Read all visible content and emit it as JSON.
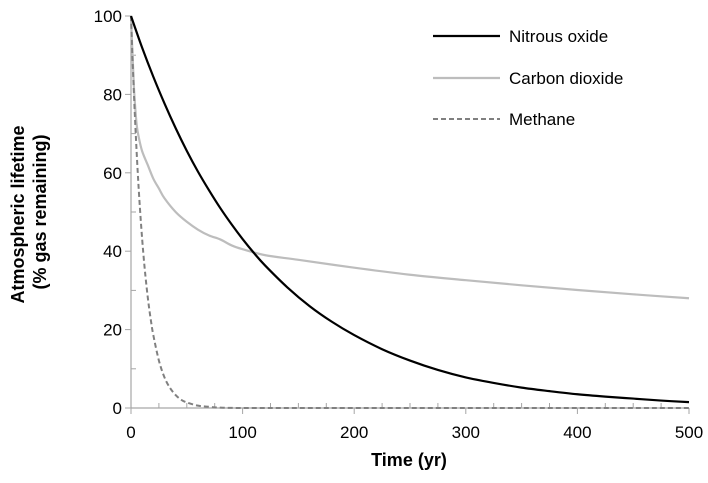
{
  "chart_data": {
    "type": "line",
    "title": "",
    "xlabel": "Time (yr)",
    "ylabel_lines": [
      "Atmospheric lifetime",
      "(% gas remaining)"
    ],
    "xlim": [
      0,
      500
    ],
    "ylim": [
      0,
      100
    ],
    "x_ticks": [
      0,
      100,
      200,
      300,
      400,
      500
    ],
    "x_tick_labels": [
      "0",
      "100",
      "200",
      "300",
      "400",
      "500"
    ],
    "y_ticks": [
      0,
      20,
      40,
      60,
      80,
      100
    ],
    "y_tick_labels": [
      "0",
      "20",
      "40",
      "60",
      "80",
      "100"
    ],
    "grid": false,
    "legend_position": "top-right",
    "series": [
      {
        "name": "Nitrous oxide",
        "color": "#000000",
        "dash": "solid",
        "x": [
          0,
          10,
          20,
          30,
          40,
          50,
          60,
          70,
          80,
          90,
          100,
          110,
          120,
          140,
          160,
          180,
          200,
          225,
          250,
          275,
          300,
          325,
          350,
          375,
          400,
          425,
          450,
          475,
          500
        ],
        "y": [
          100,
          91.9,
          84.5,
          77.7,
          71.4,
          65.6,
          60.3,
          55.5,
          51.0,
          46.9,
          43.1,
          39.6,
          36.4,
          30.8,
          26.0,
          22.0,
          18.6,
          15.0,
          12.1,
          9.7,
          7.8,
          6.4,
          5.2,
          4.3,
          3.5,
          2.9,
          2.4,
          1.9,
          1.5
        ]
      },
      {
        "name": "Carbon dioxide",
        "color": "#bdbdbd",
        "dash": "solid",
        "x": [
          0,
          1,
          2,
          3,
          5,
          7,
          10,
          15,
          20,
          25,
          30,
          40,
          50,
          60,
          70,
          80,
          90,
          100,
          120,
          150,
          200,
          250,
          300,
          350,
          400,
          450,
          500
        ],
        "y": [
          100,
          92.5,
          86.0,
          80.0,
          72.5,
          69.0,
          65.5,
          62.0,
          58.5,
          56.0,
          53.5,
          50.0,
          47.5,
          45.5,
          44.0,
          43.0,
          41.5,
          40.5,
          39.0,
          37.8,
          35.8,
          34.0,
          32.6,
          31.3,
          30.1,
          29.0,
          28.0
        ]
      },
      {
        "name": "Methane",
        "color": "#808080",
        "dash": "dashed",
        "x": [
          0,
          2,
          4,
          6,
          8,
          10,
          12,
          14,
          16,
          18,
          20,
          25,
          30,
          35,
          40,
          45,
          50,
          60,
          70,
          80,
          100,
          150,
          200,
          300,
          400,
          500
        ],
        "y": [
          100,
          84.5,
          71.4,
          60.3,
          51.0,
          43.1,
          36.4,
          30.8,
          26.0,
          22.0,
          18.6,
          12.1,
          7.8,
          5.1,
          3.3,
          2.1,
          1.4,
          0.6,
          0.3,
          0.1,
          0,
          0,
          0,
          0,
          0,
          0
        ]
      }
    ]
  }
}
